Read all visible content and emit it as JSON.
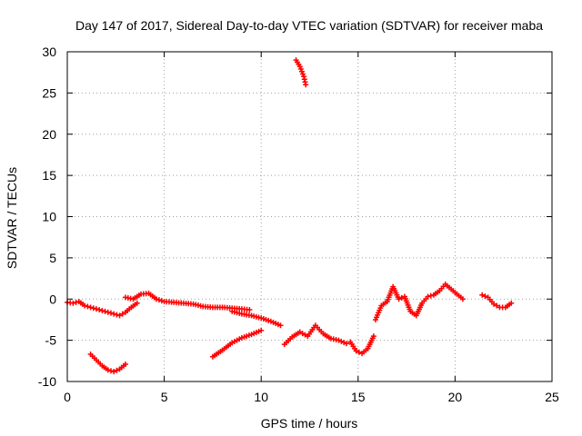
{
  "chart_data": {
    "type": "scatter",
    "title": "Day 147 of 2017, Sidereal Day-to-day VTEC variation (SDTVAR) for receiver maba",
    "xlabel": "GPS time / hours",
    "ylabel": "SDTVAR / TECUs",
    "xlim": [
      0,
      25
    ],
    "ylim": [
      -10,
      30
    ],
    "xticks": [
      0,
      5,
      10,
      15,
      20,
      25
    ],
    "yticks": [
      -10,
      -5,
      0,
      5,
      10,
      15,
      20,
      25,
      30
    ],
    "grid": true,
    "marker": "+",
    "color": "#ff0000",
    "series": [
      {
        "name": "seg1",
        "x": [
          0.0,
          0.3,
          0.6,
          0.9,
          1.2,
          1.5,
          1.8,
          2.1,
          2.4,
          2.7,
          3.0,
          3.3,
          3.6
        ],
        "y": [
          -0.4,
          -0.5,
          -0.3,
          -0.8,
          -1.0,
          -1.2,
          -1.4,
          -1.6,
          -1.8,
          -2.0,
          -1.6,
          -1.0,
          -0.5
        ]
      },
      {
        "name": "seg2",
        "x": [
          1.2,
          1.5,
          1.8,
          2.1,
          2.4,
          2.7,
          3.0
        ],
        "y": [
          -6.7,
          -7.4,
          -8.1,
          -8.6,
          -8.8,
          -8.5,
          -7.9
        ]
      },
      {
        "name": "seg3",
        "x": [
          3.0,
          3.4,
          3.8,
          4.2,
          4.6,
          5.0,
          5.5,
          6.0,
          6.5,
          7.0,
          7.5,
          8.0,
          8.5,
          9.0,
          9.4
        ],
        "y": [
          0.2,
          0.0,
          0.6,
          0.7,
          0.0,
          -0.3,
          -0.4,
          -0.5,
          -0.6,
          -0.9,
          -1.0,
          -1.0,
          -1.1,
          -1.2,
          -1.3
        ]
      },
      {
        "name": "seg4",
        "x": [
          8.5,
          9.0,
          9.5,
          10.0,
          10.5,
          11.0
        ],
        "y": [
          -1.5,
          -1.8,
          -2.0,
          -2.3,
          -2.7,
          -3.2
        ]
      },
      {
        "name": "seg5",
        "x": [
          7.5,
          8.0,
          8.5,
          9.0,
          9.5,
          10.0
        ],
        "y": [
          -7.0,
          -6.2,
          -5.3,
          -4.7,
          -4.3,
          -3.8
        ]
      },
      {
        "name": "seg6",
        "x": [
          11.8,
          12.0,
          12.2,
          12.3
        ],
        "y": [
          29.0,
          28.2,
          27.0,
          26.0
        ]
      },
      {
        "name": "seg7",
        "x": [
          11.2,
          11.6,
          12.0,
          12.4,
          12.8,
          13.2,
          13.6,
          14.0,
          14.4
        ],
        "y": [
          -5.5,
          -4.6,
          -4.0,
          -4.5,
          -3.2,
          -4.2,
          -4.8,
          -5.0,
          -5.4
        ]
      },
      {
        "name": "seg8",
        "x": [
          14.6,
          14.9,
          15.2,
          15.5,
          15.8
        ],
        "y": [
          -5.2,
          -6.3,
          -6.6,
          -6.0,
          -4.5
        ]
      },
      {
        "name": "seg9",
        "x": [
          15.9,
          16.2,
          16.5,
          16.8,
          17.1,
          17.4,
          17.7,
          18.0,
          18.3,
          18.6,
          18.9,
          19.2,
          19.5,
          19.8,
          20.1,
          20.4
        ],
        "y": [
          -2.5,
          -0.8,
          -0.3,
          1.5,
          0.0,
          0.3,
          -1.5,
          -2.0,
          -0.5,
          0.3,
          0.5,
          1.0,
          1.8,
          1.2,
          0.6,
          0.0
        ]
      },
      {
        "name": "seg10",
        "x": [
          21.4,
          21.7,
          22.0,
          22.3,
          22.6,
          22.9
        ],
        "y": [
          0.5,
          0.2,
          -0.6,
          -1.0,
          -1.0,
          -0.5
        ]
      }
    ]
  }
}
